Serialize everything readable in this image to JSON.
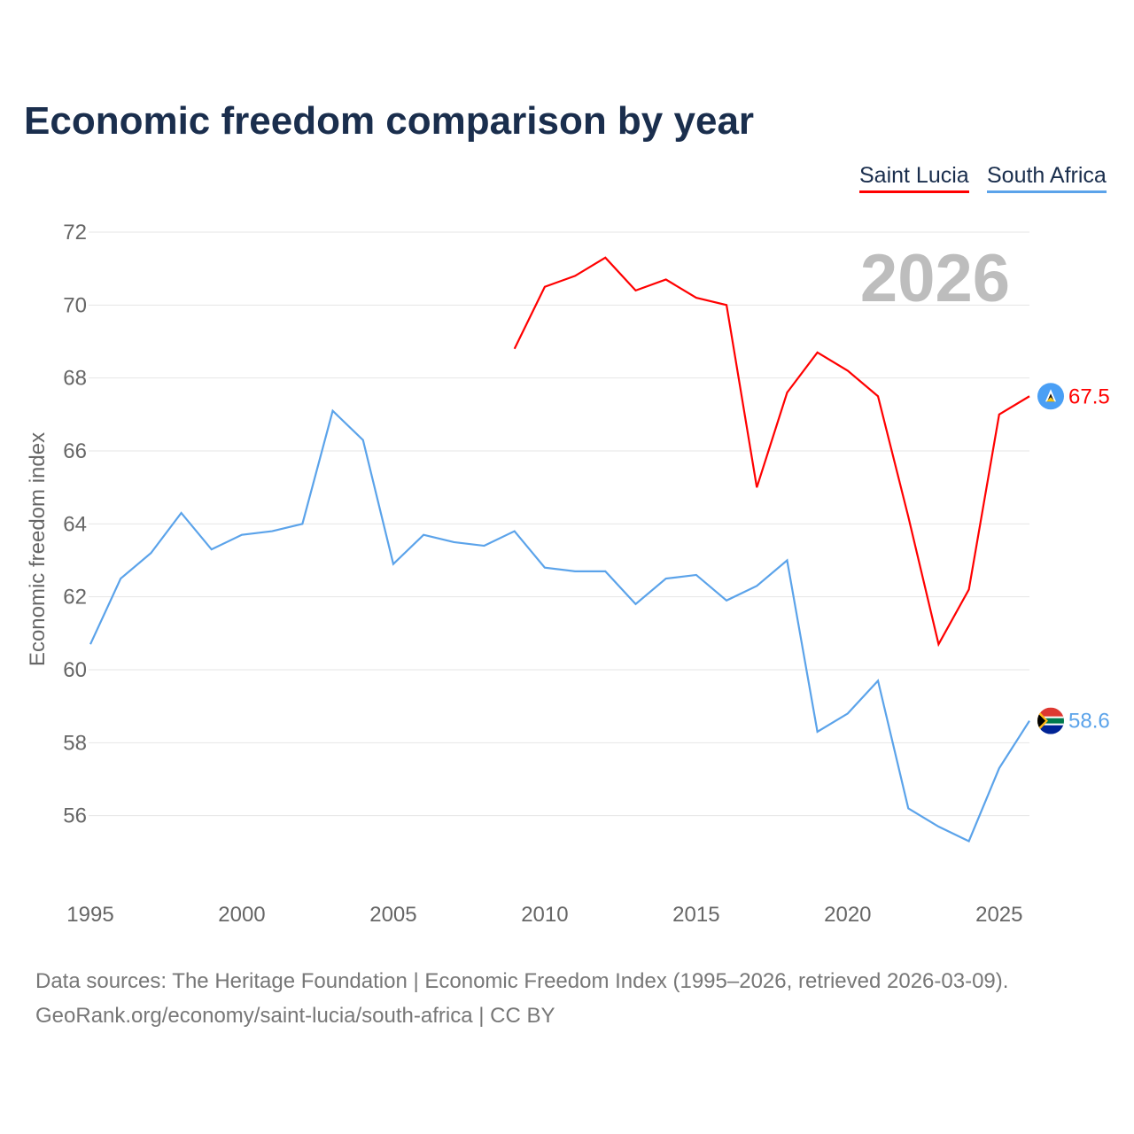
{
  "chart_data": {
    "type": "line",
    "title": "Economic freedom comparison by year",
    "xlabel": "",
    "ylabel": "Economic freedom index",
    "xlim": [
      1995,
      2026
    ],
    "ylim": [
      54,
      72
    ],
    "x_ticks": [
      1995,
      2000,
      2005,
      2010,
      2015,
      2020,
      2025
    ],
    "y_ticks": [
      56,
      58,
      60,
      62,
      64,
      66,
      68,
      70,
      72
    ],
    "grid": true,
    "legend_position": "top-right",
    "year_label": "2026",
    "series": [
      {
        "name": "Saint Lucia",
        "color": "#ff0000",
        "end_label": "67.5",
        "x": [
          2009,
          2010,
          2011,
          2012,
          2013,
          2014,
          2015,
          2016,
          2017,
          2018,
          2019,
          2020,
          2021,
          2022,
          2023,
          2024,
          2025,
          2026
        ],
        "values": [
          68.8,
          70.5,
          70.8,
          71.3,
          70.4,
          70.7,
          70.2,
          70.0,
          65.0,
          67.6,
          68.7,
          68.2,
          67.5,
          64.2,
          60.7,
          62.2,
          67.0,
          67.5
        ]
      },
      {
        "name": "South Africa",
        "color": "#5ba3ea",
        "end_label": "58.6",
        "x": [
          1995,
          1996,
          1997,
          1998,
          1999,
          2000,
          2001,
          2002,
          2003,
          2004,
          2005,
          2006,
          2007,
          2008,
          2009,
          2010,
          2011,
          2012,
          2013,
          2014,
          2015,
          2016,
          2017,
          2018,
          2019,
          2020,
          2021,
          2022,
          2023,
          2024,
          2025,
          2026
        ],
        "values": [
          60.7,
          62.5,
          63.2,
          64.3,
          63.3,
          63.7,
          63.8,
          64.0,
          67.1,
          66.3,
          62.9,
          63.7,
          63.5,
          63.4,
          63.8,
          62.8,
          62.7,
          62.7,
          61.8,
          62.5,
          62.6,
          61.9,
          62.3,
          63.0,
          58.3,
          58.8,
          59.7,
          56.2,
          55.7,
          55.3,
          57.3,
          58.6
        ]
      }
    ]
  },
  "footer": {
    "line1": "Data sources: The Heritage Foundation | Economic Freedom Index (1995–2026, retrieved 2026-03-09).",
    "line2": "GeoRank.org/economy/saint-lucia/south-africa | CC BY"
  }
}
